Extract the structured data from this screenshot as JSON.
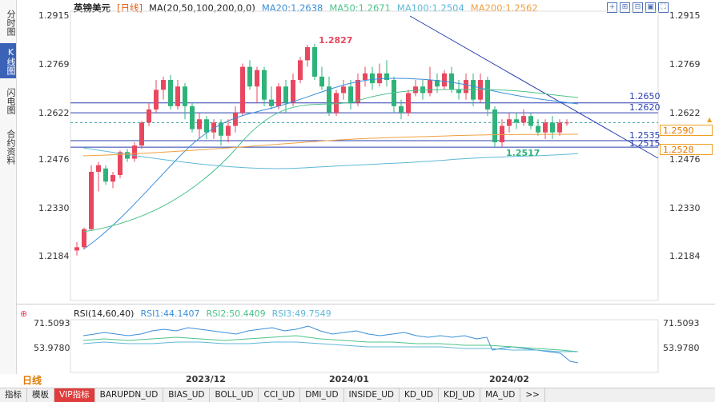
{
  "side_tabs": [
    {
      "label": "分时图",
      "active": false
    },
    {
      "label": "K线图",
      "active": true
    },
    {
      "label": "闪电图",
      "active": false
    },
    {
      "label": "合约资料",
      "active": false
    }
  ],
  "legend": {
    "symbol": "英镑美元",
    "period": "[日线]",
    "ma_label": "MA(20,50,100,200,0,0)",
    "ma20": "MA20:1.2638",
    "ma50": "MA50:1.2671",
    "ma100": "MA100:1.2504",
    "ma200": "MA200:1.2562"
  },
  "colors": {
    "ma20": "#3b8fd9",
    "ma50": "#4cc38a",
    "ma100": "#5fb8d8",
    "ma200": "#f0a040",
    "up": "#e8475f",
    "down": "#2fb37a",
    "trend": "#2b3fb0"
  },
  "price_axis": {
    "ticks": [
      "1.2915",
      "1.2769",
      "1.2622",
      "1.2476",
      "1.2330",
      "1.2184"
    ],
    "current_price": "1.2590",
    "ma_tag": "1.2528"
  },
  "annotations": {
    "high": "1.2827",
    "low": "1.2517",
    "level_1": "1.2650",
    "level_2": "1.2620",
    "level_3": "1.2535",
    "level_4": "1.2515"
  },
  "rsi": {
    "label": "RSI(14,60,40)",
    "rsi1": "RSI1:44.1407",
    "rsi2": "RSI2:50.4409",
    "rsi3": "RSI3:49.7549",
    "ticks": [
      "71.5093",
      "53.9780"
    ]
  },
  "time_axis": {
    "labels": [
      "2023/12",
      "2024/01",
      "2024/02"
    ],
    "period_button": "日线"
  },
  "bottom_tabs": [
    "指标",
    "模板",
    "VIP指标",
    "BARUPDN_UD",
    "BIAS_UD",
    "BOLL_UD",
    "CCI_UD",
    "DMI_UD",
    "INSIDE_UD",
    "KD_UD",
    "KDJ_UD",
    "MA_UD",
    ">>"
  ],
  "toolbar_icons": [
    "crosshair-icon",
    "zoom-in-icon",
    "zoom-out-icon",
    "fit-icon",
    "fullscreen-icon"
  ]
}
